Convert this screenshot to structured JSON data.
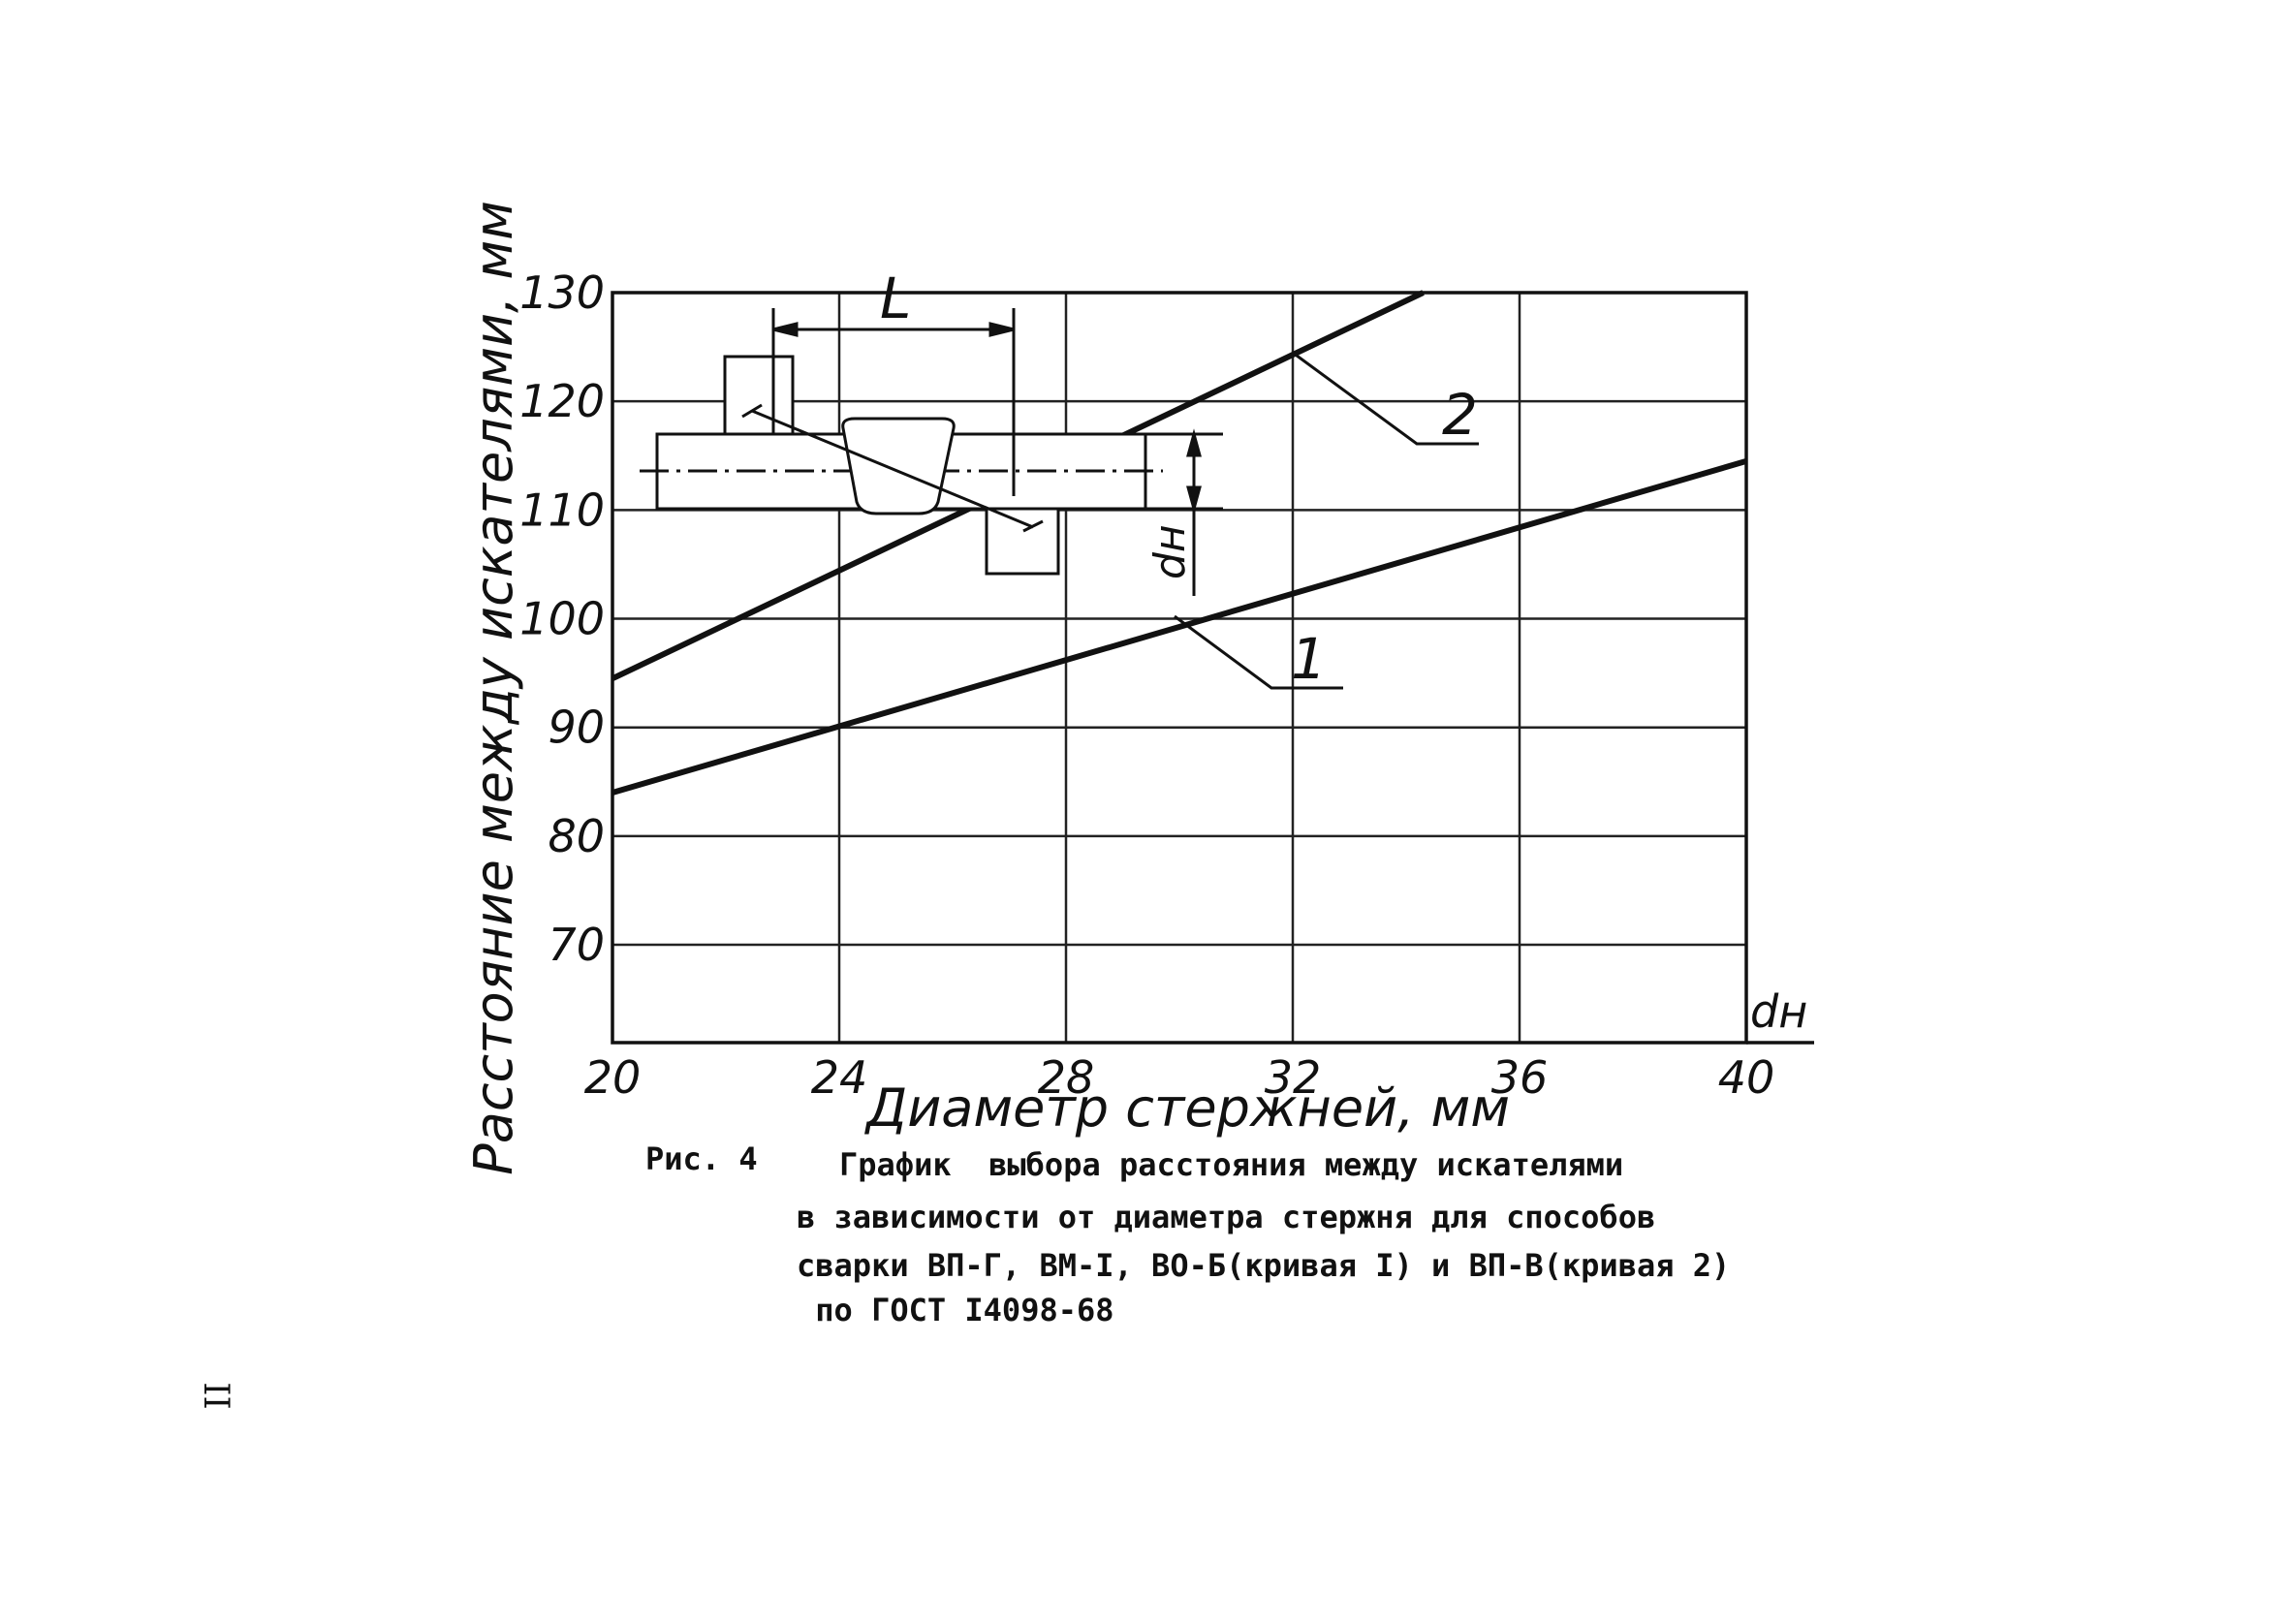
{
  "chart_data": {
    "type": "line",
    "xlabel": "Диаметр стержней, мм",
    "ylabel": "Расстояние между искателями, мм",
    "xlim": [
      20,
      40
    ],
    "ylim": [
      61,
      130
    ],
    "x_ticks": [
      "20",
      "24",
      "28",
      "32",
      "36",
      "40"
    ],
    "y_ticks": [
      "130",
      "120",
      "110",
      "100",
      "90",
      "80",
      "70"
    ],
    "x_axis_end_label": "dн",
    "grid": true,
    "series": [
      {
        "name": "1",
        "x": [
          20,
          40
        ],
        "y": [
          84,
          114.5
        ]
      },
      {
        "name": "2",
        "x": [
          20,
          34.3
        ],
        "y": [
          94.5,
          130
        ]
      }
    ],
    "inset": {
      "dimension_label": "L",
      "diameter_label": "dн"
    }
  },
  "caption": {
    "figure_number": "Рис. 4",
    "lines": [
      "График  выбора расстояния между искателями",
      "в зависимости от диаметра стержня для способов",
      "сварки ВП-Г, ВМ-I, ВО-Б(кривая I) и ВП-В(кривая 2)",
      " по ГОСТ I4098-68"
    ]
  },
  "page_number": "II"
}
